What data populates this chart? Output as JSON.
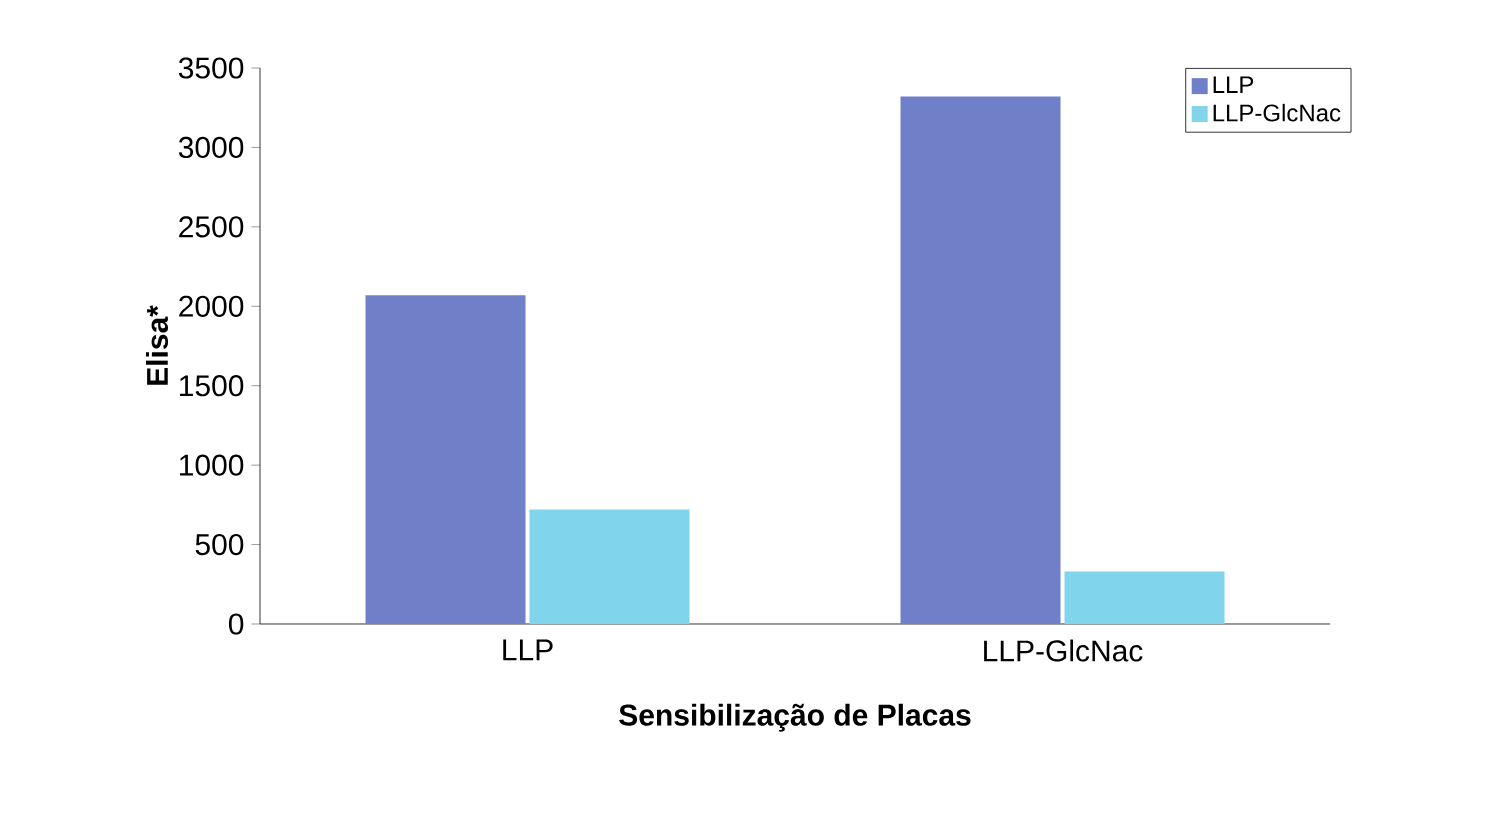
{
  "chart_data": {
    "type": "bar",
    "xlabel": "Sensibilização de Placas",
    "ylabel": "Elisa*",
    "categories": [
      "LLP",
      "LLP-GlcNac"
    ],
    "series": [
      {
        "name": "LLP",
        "color": "#7080c8",
        "values": [
          2070,
          3320
        ]
      },
      {
        "name": "LLP-GlcNac",
        "color": "#80d4ec",
        "values": [
          720,
          330
        ]
      }
    ],
    "ylim": [
      0,
      3500
    ],
    "yticks": [
      0,
      500,
      1000,
      1500,
      2000,
      2500,
      3000,
      3500
    ],
    "grid": false,
    "legend": "top right"
  }
}
